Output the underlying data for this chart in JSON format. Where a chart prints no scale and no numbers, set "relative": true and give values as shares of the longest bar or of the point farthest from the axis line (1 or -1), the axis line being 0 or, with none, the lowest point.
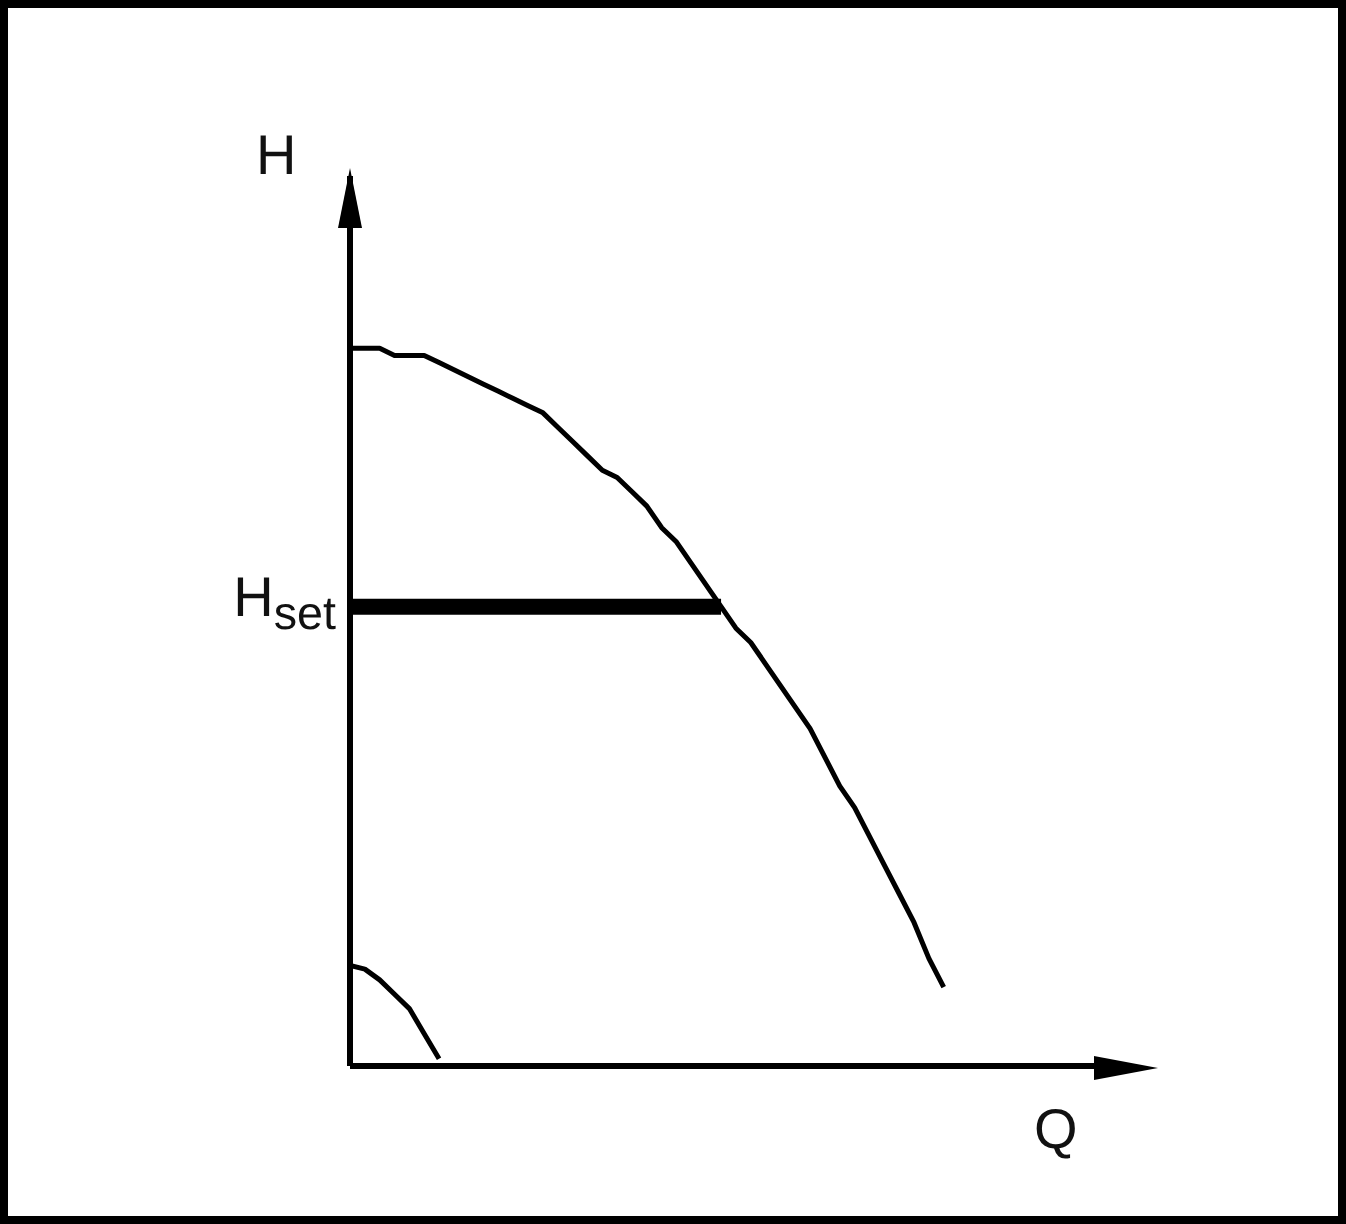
{
  "chart_data": {
    "type": "line",
    "relative": true,
    "xlabel": "Q",
    "ylabel": "H",
    "marker": "none",
    "line_style": "solid",
    "categories": [
      null,
      null,
      null,
      null,
      null,
      null,
      null,
      null,
      null,
      null,
      null,
      null,
      null,
      null,
      null,
      null,
      null,
      null,
      null,
      null,
      null,
      null,
      null,
      null,
      null,
      null,
      null,
      null,
      null,
      null,
      null,
      null,
      null,
      null,
      null,
      null,
      null,
      null,
      null,
      null,
      null
    ],
    "series": [
      {
        "color": "#000000",
        "values": [
          1,
          1,
          1,
          0.99,
          0.99,
          0.99,
          0.98,
          0.97,
          0.96,
          0.95,
          0.94,
          0.93,
          0.92,
          0.91,
          0.89,
          0.87,
          0.85,
          0.83,
          0.82,
          0.8,
          0.78,
          0.75,
          0.73,
          0.7,
          0.67,
          0.64,
          0.61,
          0.59,
          0.56,
          0.53,
          0.5,
          0.47,
          0.43,
          0.39,
          0.36,
          0.32,
          0.28,
          0.24,
          0.2,
          0.15,
          0.11
        ]
      },
      {
        "color": "#000000",
        "values": [
          0.64,
          0.64,
          0.64,
          0.64,
          0.64,
          0.64,
          0.64,
          0.64,
          0.64,
          0.64,
          0.64,
          0.64,
          0.64,
          0.64,
          0.64,
          0.64,
          0.64,
          0.64,
          0.64,
          0.64,
          0.64,
          0.64,
          0.64,
          0.64,
          0.64,
          0.64,
          null,
          null,
          null,
          null,
          null,
          null,
          null,
          null,
          null,
          null,
          null,
          null,
          null,
          null,
          null
        ]
      },
      {
        "color": "#000000",
        "values": [
          0.14,
          0.135,
          0.12,
          0.1,
          0.08,
          0.045,
          0.01,
          null,
          null,
          null,
          null,
          null,
          null,
          null,
          null,
          null,
          null,
          null,
          null,
          null,
          null,
          null,
          null,
          null,
          null,
          null,
          null,
          null,
          null,
          null,
          null,
          null,
          null,
          null,
          null,
          null,
          null,
          null,
          null,
          null,
          null
        ]
      }
    ],
    "annotations": [
      "H$_{set}$"
    ]
  }
}
